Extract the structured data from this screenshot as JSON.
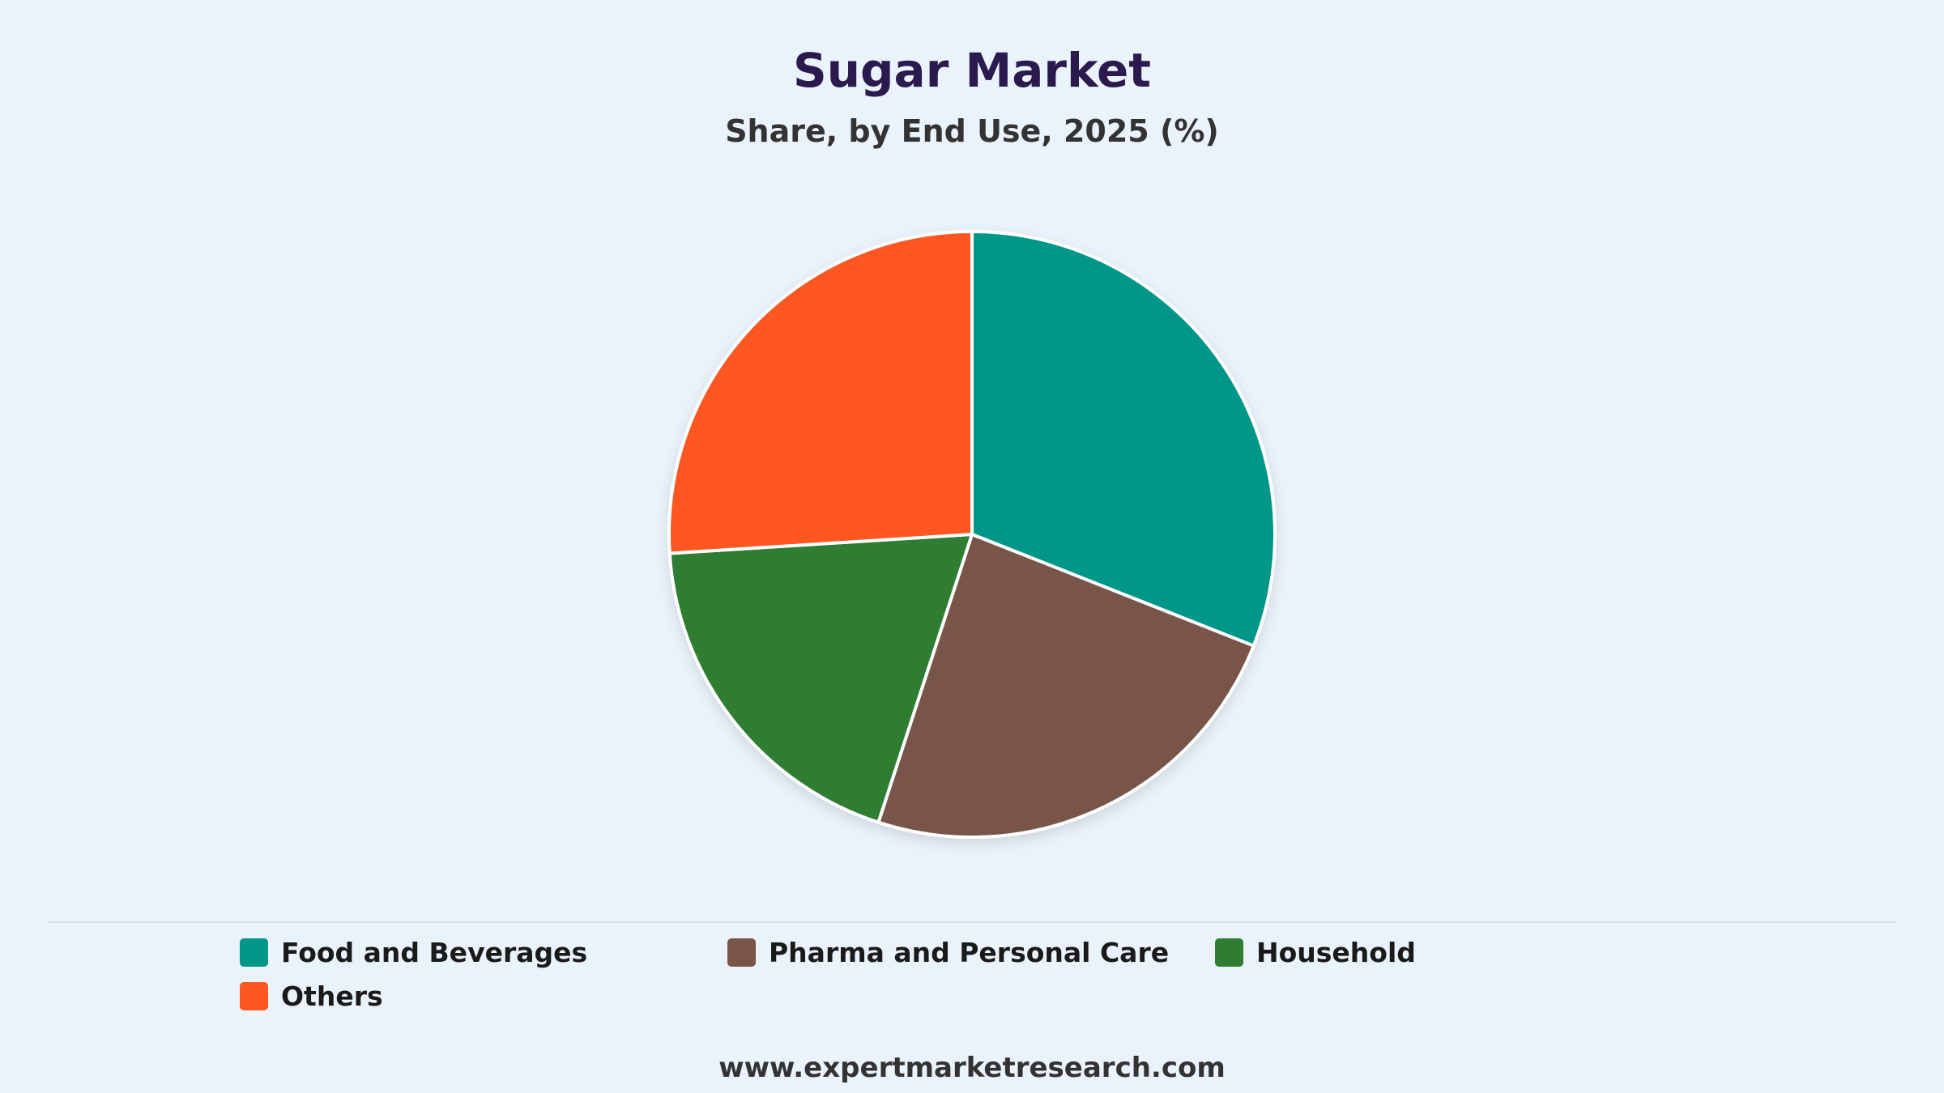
{
  "chart_data": {
    "type": "pie",
    "title": "Sugar Market",
    "subtitle": "Share, by End Use, 2025 (%)",
    "categories": [
      "Food and Beverages",
      "Pharma and Personal Care",
      "Household",
      "Others"
    ],
    "values": [
      31,
      24,
      19,
      26
    ],
    "colors": [
      "#009688",
      "#795548",
      "#2e7d32",
      "#ff5722"
    ],
    "legend_position": "bottom"
  },
  "footer": {
    "source": "www.expertmarketresearch.com"
  }
}
